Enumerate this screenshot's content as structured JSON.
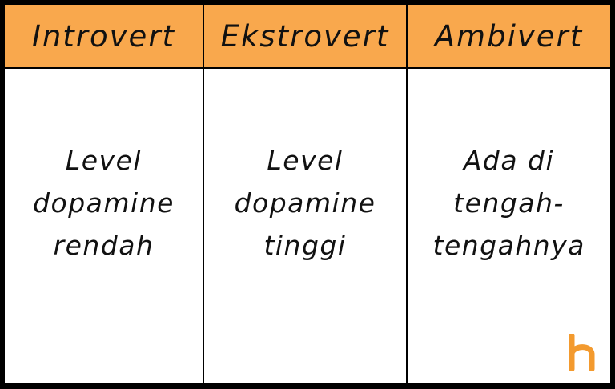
{
  "colors": {
    "header_background": "#F9A84D",
    "body_background": "#FFFFFF",
    "border": "#000000",
    "logo": "#F39A2E"
  },
  "headers": [
    "Introvert",
    "Ekstrovert",
    "Ambivert"
  ],
  "cells": [
    {
      "lines": [
        "Level",
        "dopamine",
        "rendah"
      ]
    },
    {
      "lines": [
        "Level",
        "dopamine",
        "tinggi"
      ]
    },
    {
      "lines": [
        "Ada di",
        "tengah-",
        "tengahnya"
      ]
    }
  ],
  "logo": {
    "text": "h",
    "icon": "brand-logo-icon"
  }
}
